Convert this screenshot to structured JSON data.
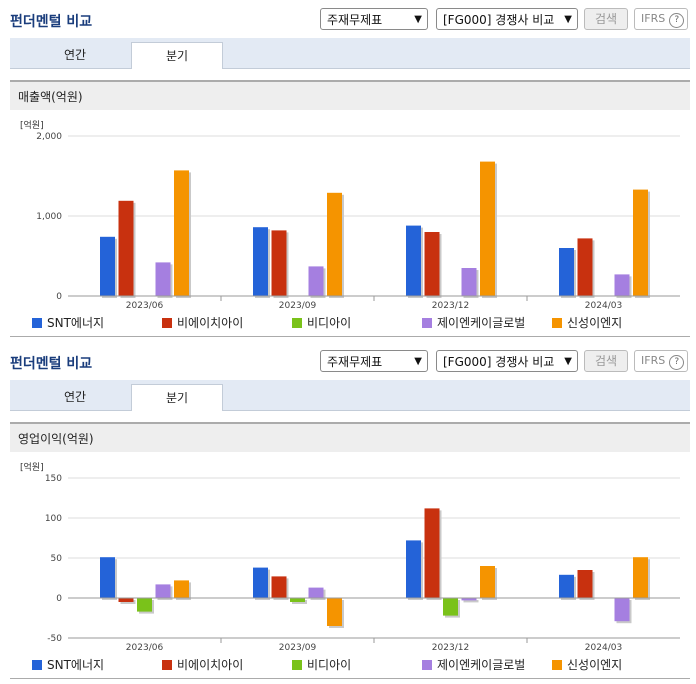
{
  "panels": [
    {
      "title": "펀더멘털 비교",
      "select1": "주재무제표",
      "select2": "[FG000] 경쟁사 비교",
      "search_label": "검색",
      "ifrs_label": "IFRS",
      "tabs": [
        "연간",
        "분기"
      ],
      "active_tab": "분기",
      "section_title": "매출액(억원)",
      "unit": "[억원]"
    },
    {
      "title": "펀더멘털 비교",
      "select1": "주재무제표",
      "select2": "[FG000] 경쟁사 비교",
      "search_label": "검색",
      "ifrs_label": "IFRS",
      "tabs": [
        "연간",
        "분기"
      ],
      "active_tab": "분기",
      "section_title": "영업이익(억원)",
      "unit": "[억원]"
    }
  ],
  "chart_data": [
    {
      "type": "bar",
      "title": "매출액(억원)",
      "categories": [
        "2023/06",
        "2023/09",
        "2023/12",
        "2024/03"
      ],
      "ylim": [
        0,
        2000
      ],
      "yticks": [
        0,
        1000,
        2000
      ],
      "ytick_labels": [
        "0",
        "1,000",
        "2,000"
      ],
      "grid": true,
      "legend_position": "bottom",
      "series": [
        {
          "name": "SNT에너지",
          "color": "#2463d8",
          "values": [
            740,
            860,
            880,
            600
          ]
        },
        {
          "name": "비에이치아이",
          "color": "#c8310f",
          "values": [
            1190,
            820,
            800,
            720
          ]
        },
        {
          "name": "비디아이",
          "color": "#7ac21a",
          "values": [
            null,
            null,
            null,
            null
          ]
        },
        {
          "name": "제이엔케이글로벌",
          "color": "#a57fe0",
          "values": [
            420,
            370,
            350,
            270
          ]
        },
        {
          "name": "신성이엔지",
          "color": "#f59400",
          "values": [
            1570,
            1290,
            1680,
            1330
          ]
        }
      ]
    },
    {
      "type": "bar",
      "title": "영업이익(억원)",
      "categories": [
        "2023/06",
        "2023/09",
        "2023/12",
        "2024/03"
      ],
      "ylim": [
        -50,
        150
      ],
      "yticks": [
        -50,
        0,
        50,
        100,
        150
      ],
      "ytick_labels": [
        "-50",
        "0",
        "50",
        "100",
        "150"
      ],
      "grid": true,
      "legend_position": "bottom",
      "series": [
        {
          "name": "SNT에너지",
          "color": "#2463d8",
          "values": [
            51,
            38,
            72,
            29
          ]
        },
        {
          "name": "비에이치아이",
          "color": "#c8310f",
          "values": [
            -5,
            27,
            112,
            35
          ]
        },
        {
          "name": "비디아이",
          "color": "#7ac21a",
          "values": [
            -17,
            -5,
            -22,
            null
          ]
        },
        {
          "name": "제이엔케이글로벌",
          "color": "#a57fe0",
          "values": [
            17,
            13,
            -3,
            -29
          ]
        },
        {
          "name": "신성이엔지",
          "color": "#f59400",
          "values": [
            22,
            -35,
            40,
            51
          ]
        }
      ]
    }
  ]
}
